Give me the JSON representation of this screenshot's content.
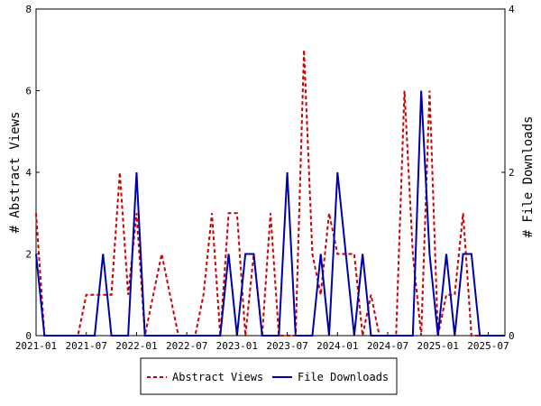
{
  "chart_data": {
    "type": "line",
    "ylabel": "# Abstract Views",
    "y2label": "# File Downloads",
    "ylim": [
      0,
      8
    ],
    "y2lim": [
      0,
      4
    ],
    "yticks": [
      "0",
      "2",
      "4",
      "6",
      "8"
    ],
    "y2ticks": [
      "0",
      "2",
      "4"
    ],
    "xticks": [
      "2021-01",
      "2021-07",
      "2022-01",
      "2022-07",
      "2023-01",
      "2023-07",
      "2024-01",
      "2024-07",
      "2025-01",
      "2025-07"
    ],
    "x": [
      "2021-01",
      "2021-02",
      "2021-03",
      "2021-04",
      "2021-05",
      "2021-06",
      "2021-07",
      "2021-08",
      "2021-09",
      "2021-10",
      "2021-11",
      "2021-12",
      "2022-01",
      "2022-02",
      "2022-03",
      "2022-04",
      "2022-05",
      "2022-06",
      "2022-07",
      "2022-08",
      "2022-09",
      "2022-10",
      "2022-11",
      "2022-12",
      "2023-01",
      "2023-02",
      "2023-03",
      "2023-04",
      "2023-05",
      "2023-06",
      "2023-07",
      "2023-08",
      "2023-09",
      "2023-10",
      "2023-11",
      "2023-12",
      "2024-01",
      "2024-02",
      "2024-03",
      "2024-04",
      "2024-05",
      "2024-06",
      "2024-07",
      "2024-08",
      "2024-09",
      "2024-10",
      "2024-11",
      "2024-12",
      "2025-01",
      "2025-02",
      "2025-03",
      "2025-04",
      "2025-05",
      "2025-06",
      "2025-07",
      "2025-08",
      "2025-09"
    ],
    "grid": false,
    "legend_position": "bottom",
    "series": [
      {
        "name": "Abstract Views",
        "axis": "left",
        "color": "#cc0000",
        "dash": "dashed",
        "values": [
          3,
          0,
          0,
          0,
          0,
          0,
          1,
          1,
          1,
          1,
          4,
          1,
          3,
          0,
          1,
          2,
          1,
          0,
          0,
          0,
          1,
          3,
          0,
          3,
          3,
          0,
          2,
          0,
          3,
          0,
          0,
          0,
          7,
          2,
          1,
          3,
          2,
          2,
          2,
          0,
          1,
          0,
          0,
          0,
          6,
          2,
          0,
          6,
          0,
          1,
          1,
          3,
          0,
          0,
          0,
          0,
          0
        ]
      },
      {
        "name": "File Downloads",
        "axis": "right",
        "color": "#0000aa",
        "dash": "solid",
        "values": [
          1,
          0,
          0,
          0,
          0,
          0,
          0,
          0,
          1,
          0,
          0,
          0,
          2,
          0,
          0,
          0,
          0,
          0,
          0,
          0,
          0,
          0,
          0,
          1,
          0,
          1,
          1,
          0,
          0,
          0,
          2,
          0,
          0,
          0,
          1,
          0,
          2,
          1,
          0,
          1,
          0,
          0,
          0,
          0,
          0,
          0,
          3,
          1,
          0,
          1,
          0,
          1,
          1,
          0,
          0,
          0,
          0
        ]
      }
    ]
  }
}
